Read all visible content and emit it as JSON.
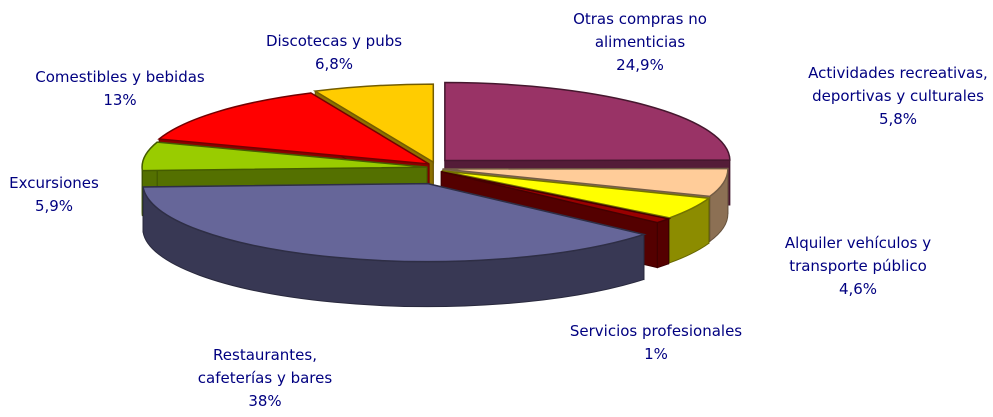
{
  "chart_data": {
    "type": "pie3d",
    "categories": [
      "Otras compras no alimenticias",
      "Actividades recreativas, deportivas y culturales",
      "Alquiler vehículos y transporte público",
      "Servicios profesionales",
      "Restaurantes, cafeterías y bares",
      "Excursiones",
      "Comestibles y bebidas",
      "Discotecas y pubs"
    ],
    "values": [
      24.9,
      5.8,
      4.6,
      1,
      38,
      5.9,
      13,
      6.8
    ],
    "value_labels": [
      "24,9%",
      "5,8%",
      "4,6%",
      "1%",
      "38%",
      "5,9%",
      "13%",
      "6,8%"
    ],
    "colors": [
      "#993366",
      "#ffcc99",
      "#ffff00",
      "#990000",
      "#666699",
      "#99cc00",
      "#ff0000",
      "#ffcc00"
    ]
  }
}
